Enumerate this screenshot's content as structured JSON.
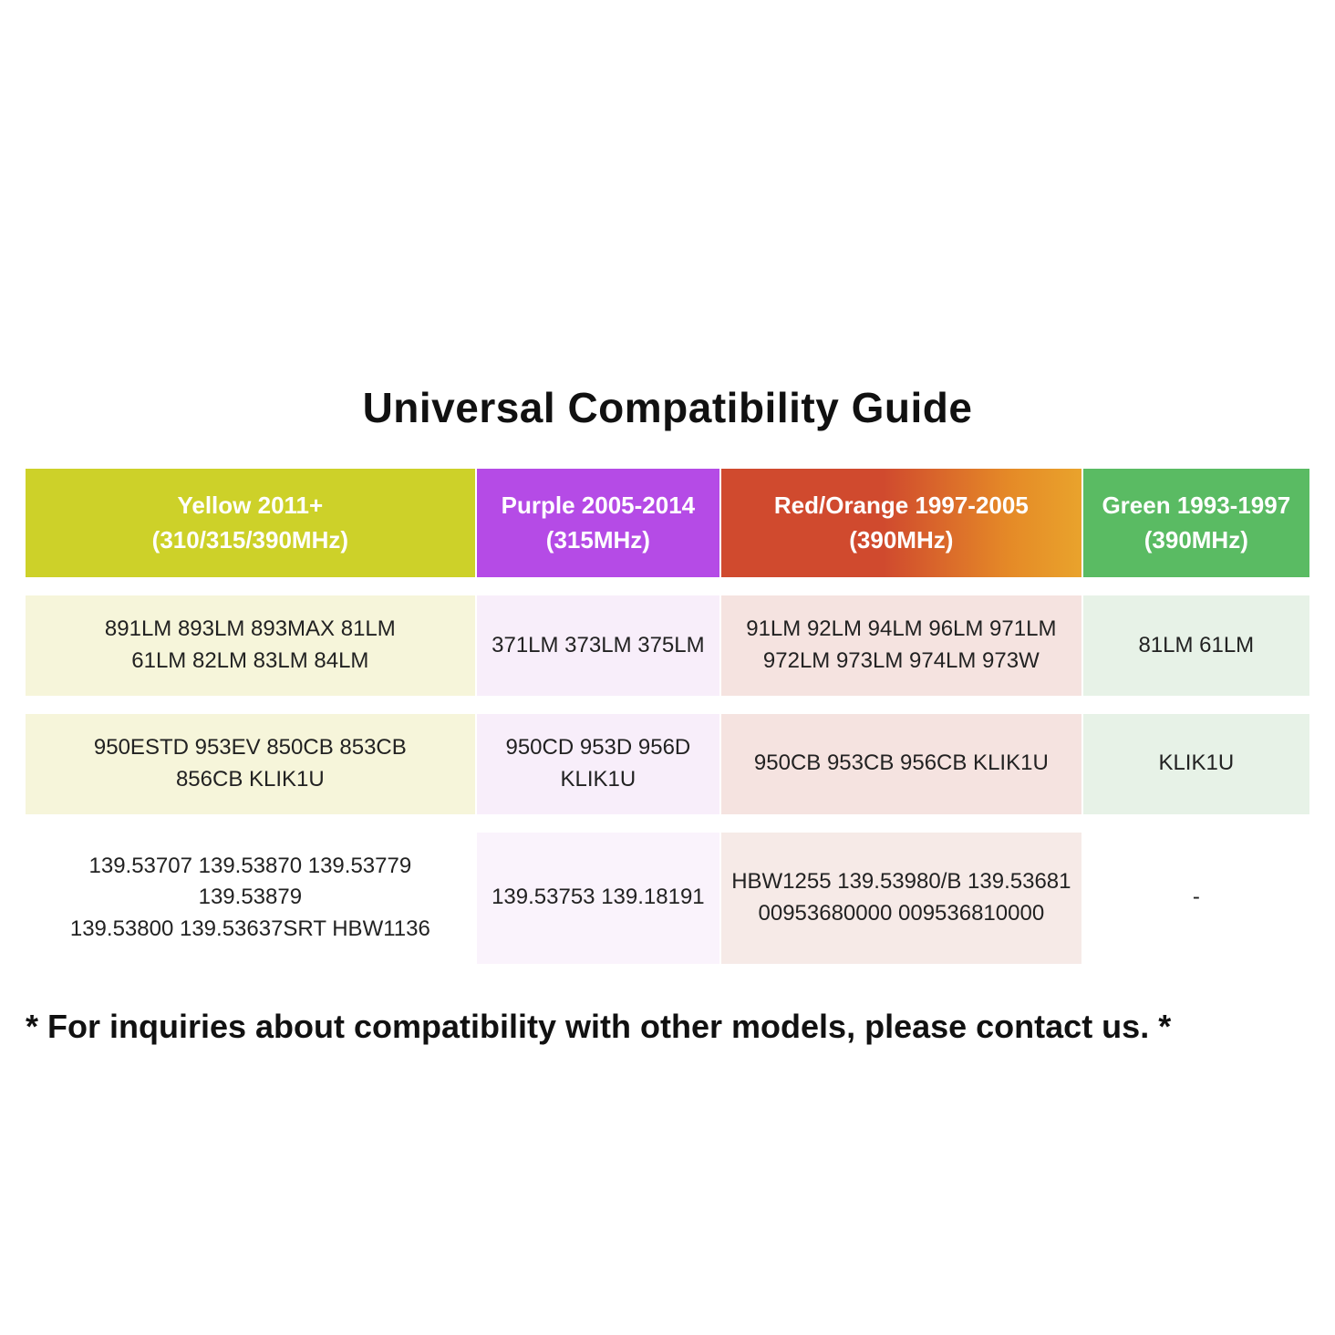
{
  "title": "Universal Compatibility Guide",
  "columns": [
    {
      "line1": "Yellow 2011+",
      "line2": "(310/315/390MHz)",
      "header_bg": "#cdd129",
      "tint": "#f6f5da"
    },
    {
      "line1": "Purple 2005-2014",
      "line2": "(315MHz)",
      "header_bg": "#b54be6",
      "tint": "#f8eefa"
    },
    {
      "line1": "Red/Orange 1997-2005",
      "line2": "(390MHz)",
      "header_bg_gradient": [
        "#d04a2e",
        "#e9a32c"
      ],
      "tint": "#f5e3e0"
    },
    {
      "line1": "Green 1993-1997",
      "line2": "(390MHz)",
      "header_bg": "#5abb63",
      "tint": "#e7f2e7"
    }
  ],
  "rows": [
    {
      "cells": [
        "891LM 893LM 893MAX 81LM\n61LM 82LM 83LM 84LM",
        "371LM 373LM 375LM",
        "91LM 92LM 94LM 96LM 971LM\n972LM 973LM 974LM 973W",
        "81LM 61LM"
      ],
      "tints": [
        "yellow",
        "purple",
        "red",
        "green"
      ]
    },
    {
      "cells": [
        "950ESTD 953EV 850CB 853CB\n856CB KLIK1U",
        "950CD 953D 956D\nKLIK1U",
        "950CB 953CB 956CB KLIK1U",
        "KLIK1U"
      ],
      "tints": [
        "yellow",
        "purple",
        "red",
        "green"
      ]
    },
    {
      "cells": [
        "139.53707 139.53870 139.53779 139.53879\n139.53800 139.53637SRT HBW1136",
        "139.53753 139.18191",
        "HBW1255 139.53980/B 139.53681\n00953680000 009536810000",
        "-"
      ],
      "tints": [
        "white",
        "lav",
        "pink",
        "white"
      ]
    }
  ],
  "footer": "* For inquiries about compatibility with other models, please contact us. *",
  "typography": {
    "title_fontsize": 46,
    "header_fontsize": 26,
    "cell_fontsize": 24,
    "footer_fontsize": 36
  }
}
